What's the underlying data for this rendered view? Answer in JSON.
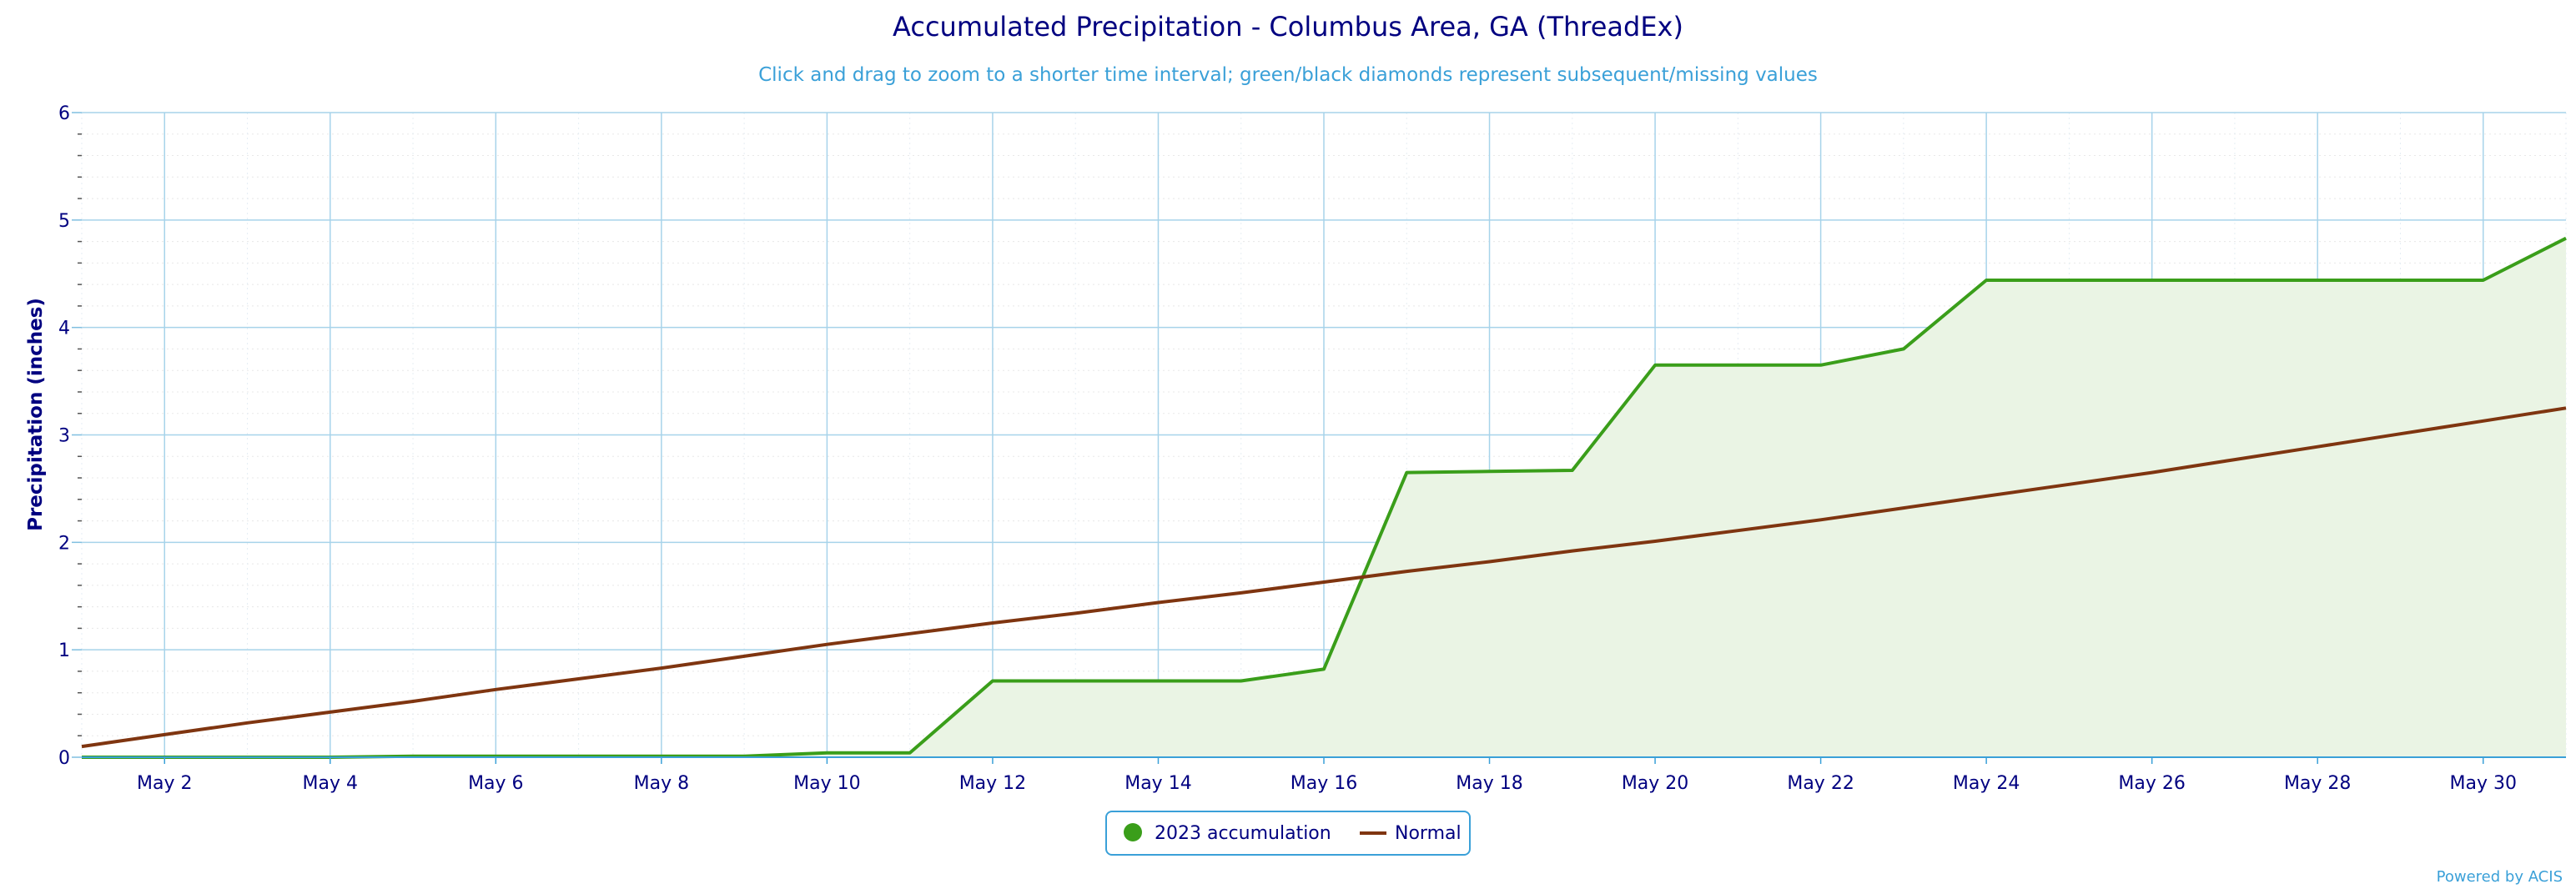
{
  "chart_data": {
    "type": "line",
    "title": "Accumulated Precipitation - Columbus Area, GA (ThreadEx)",
    "subtitle": "Click and drag to zoom to a shorter time interval; green/black diamonds represent subsequent/missing values",
    "xlabel": "",
    "ylabel": "Precipitation (inches)",
    "ylim": [
      0,
      6
    ],
    "y_ticks": [
      "0",
      "1",
      "2",
      "3",
      "4",
      "5",
      "6"
    ],
    "x_tick_labels": [
      "May 2",
      "May 4",
      "May 6",
      "May 8",
      "May 10",
      "May 12",
      "May 14",
      "May 16",
      "May 18",
      "May 20",
      "May 22",
      "May 24",
      "May 26",
      "May 28",
      "May 30"
    ],
    "x": [
      "May 1",
      "May 2",
      "May 3",
      "May 4",
      "May 5",
      "May 6",
      "May 7",
      "May 8",
      "May 9",
      "May 10",
      "May 11",
      "May 12",
      "May 13",
      "May 14",
      "May 15",
      "May 16",
      "May 17",
      "May 18",
      "May 19",
      "May 20",
      "May 21",
      "May 22",
      "May 23",
      "May 24",
      "May 25",
      "May 26",
      "May 27",
      "May 28",
      "May 29",
      "May 30",
      "May 31"
    ],
    "series": [
      {
        "name": "2023 accumulation",
        "color": "#3a9e1a",
        "fill": "#eaf4e4",
        "style": "area",
        "values": [
          0.0,
          0.0,
          0.0,
          0.0,
          0.01,
          0.01,
          0.01,
          0.01,
          0.01,
          0.04,
          0.04,
          0.71,
          0.71,
          0.71,
          0.71,
          0.82,
          2.65,
          2.66,
          2.67,
          3.65,
          3.65,
          3.65,
          3.8,
          4.44,
          4.44,
          4.44,
          4.44,
          4.44,
          4.44,
          4.44,
          4.83
        ]
      },
      {
        "name": "Normal",
        "color": "#7f3510",
        "style": "line",
        "values": [
          0.1,
          0.21,
          0.32,
          0.42,
          0.52,
          0.63,
          0.73,
          0.83,
          0.94,
          1.05,
          1.15,
          1.25,
          1.34,
          1.44,
          1.53,
          1.63,
          1.73,
          1.82,
          1.92,
          2.01,
          2.11,
          2.21,
          2.32,
          2.43,
          2.54,
          2.65,
          2.77,
          2.89,
          3.01,
          3.13,
          3.25
        ]
      }
    ],
    "grid": true,
    "legend_position": "bottom-center",
    "credit": "Powered by ACIS"
  }
}
